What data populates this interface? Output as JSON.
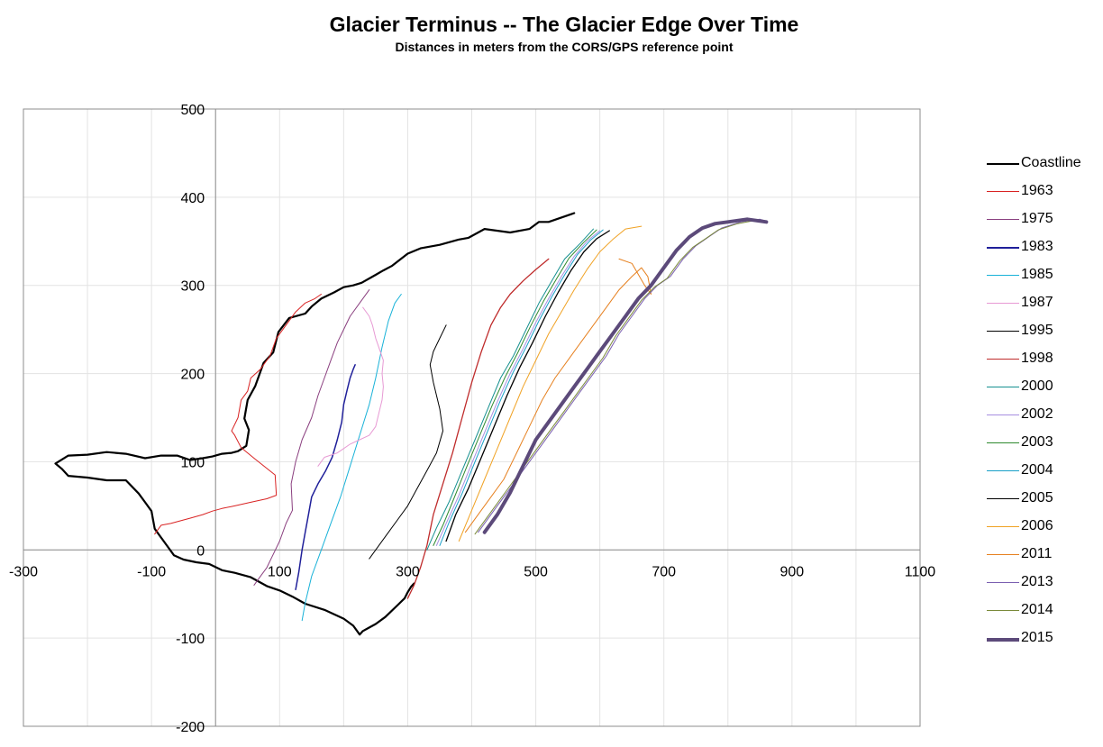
{
  "chart_data": {
    "type": "line",
    "title": "Glacier Terminus -- The Glacier Edge Over Time",
    "subtitle": "Distances in meters from the CORS/GPS reference point",
    "xlabel": "",
    "ylabel": "",
    "xlim": [
      -300,
      1100
    ],
    "ylim": [
      -200,
      500
    ],
    "xticks": [
      -300,
      -100,
      100,
      300,
      500,
      700,
      900,
      1100
    ],
    "yticks": [
      -200,
      -100,
      0,
      100,
      200,
      300,
      400,
      500
    ],
    "xtick_labels": [
      "-300",
      "-100",
      "100",
      "300",
      "500",
      "700",
      "900",
      "1100"
    ],
    "ytick_labels": [
      "-200",
      "-100",
      "0",
      "100",
      "200",
      "300",
      "400",
      "500"
    ],
    "grid": true,
    "legend_position": "right",
    "series": [
      {
        "name": "Coastline",
        "color": "#000000",
        "width": 2.2,
        "x": [
          560,
          520,
          505,
          490,
          460,
          420,
          395,
          380,
          350,
          320,
          300,
          275,
          262,
          250,
          228,
          215,
          200,
          185,
          165,
          150,
          140,
          115,
          98,
          90,
          75,
          62,
          50,
          45,
          52,
          48,
          35,
          25,
          10,
          -5,
          -20,
          -40,
          -60,
          -85,
          -110,
          -140,
          -170,
          -200,
          -230,
          -250,
          -240,
          -230,
          -200,
          -170,
          -140,
          -120,
          -110,
          -100,
          -95,
          -85,
          -75,
          -65,
          -50,
          -30,
          -10,
          10,
          30,
          55,
          80,
          100,
          120,
          140,
          170,
          200,
          215,
          225,
          230,
          240,
          250,
          265,
          285,
          295,
          300,
          305,
          310
        ],
        "y": [
          382,
          372,
          372,
          364,
          360,
          364,
          354,
          352,
          346,
          342,
          336,
          322,
          317,
          312,
          303,
          300,
          298,
          292,
          285,
          276,
          268,
          263,
          247,
          224,
          212,
          186,
          170,
          149,
          136,
          118,
          112,
          110,
          109,
          106,
          104,
          102,
          107,
          107,
          104,
          109,
          111,
          108,
          107,
          98,
          92,
          84,
          82,
          79,
          79,
          64,
          54,
          44,
          24,
          14,
          4,
          -6,
          -11,
          -14,
          -16,
          -23,
          -26,
          -31,
          -41,
          -46,
          -53,
          -61,
          -68,
          -78,
          -86,
          -96,
          -92,
          -88,
          -84,
          -76,
          -62,
          -55,
          -48,
          -42,
          -38
        ]
      },
      {
        "name": "1963",
        "color": "#d92323",
        "width": 1,
        "x": [
          -95,
          -85,
          -70,
          -55,
          -40,
          -20,
          -5,
          10,
          30,
          55,
          80,
          95,
          93,
          60,
          40,
          30,
          25,
          35,
          40,
          50,
          55,
          70,
          85,
          95,
          110,
          125,
          140,
          155,
          165
        ],
        "y": [
          18,
          28,
          30,
          33,
          36,
          40,
          44,
          47,
          50,
          54,
          58,
          62,
          85,
          104,
          116,
          130,
          135,
          150,
          170,
          180,
          195,
          205,
          220,
          240,
          255,
          270,
          280,
          285,
          290
        ]
      },
      {
        "name": "1975",
        "color": "#8a3f7f",
        "width": 1,
        "x": [
          60,
          70,
          80,
          90,
          100,
          110,
          120,
          118,
          125,
          135,
          150,
          160,
          170,
          180,
          190,
          200,
          210,
          225,
          240
        ],
        "y": [
          -40,
          -30,
          -20,
          -5,
          10,
          30,
          45,
          75,
          100,
          125,
          150,
          175,
          195,
          215,
          235,
          250,
          265,
          280,
          295
        ]
      },
      {
        "name": "1983",
        "color": "#20209a",
        "width": 1.5,
        "x": [
          125,
          130,
          135,
          140,
          145,
          150,
          160,
          172,
          182,
          190,
          197,
          200,
          205,
          210,
          215,
          218
        ],
        "y": [
          -45,
          -25,
          0,
          20,
          40,
          60,
          75,
          90,
          105,
          125,
          145,
          165,
          180,
          195,
          205,
          210
        ]
      },
      {
        "name": "1985",
        "color": "#19b2d8",
        "width": 1,
        "x": [
          135,
          140,
          150,
          165,
          180,
          195,
          210,
          225,
          240,
          250,
          260,
          270,
          280,
          290
        ],
        "y": [
          -80,
          -60,
          -30,
          0,
          30,
          60,
          95,
          130,
          165,
          195,
          230,
          260,
          280,
          290
        ]
      },
      {
        "name": "1987",
        "color": "#e79ad4",
        "width": 1,
        "x": [
          160,
          170,
          190,
          200,
          210,
          225,
          240,
          250,
          255,
          260,
          262,
          260,
          262,
          250,
          245,
          240,
          230
        ],
        "y": [
          95,
          105,
          110,
          115,
          120,
          125,
          130,
          140,
          155,
          170,
          185,
          200,
          215,
          240,
          255,
          265,
          275
        ]
      },
      {
        "name": "1995",
        "color": "#000000",
        "width": 1,
        "x": [
          240,
          255,
          270,
          285,
          300,
          315,
          330,
          345,
          355,
          350,
          340,
          335,
          340,
          350,
          360
        ],
        "y": [
          -10,
          5,
          20,
          35,
          50,
          70,
          90,
          110,
          135,
          160,
          190,
          210,
          225,
          240,
          255
        ]
      },
      {
        "name": "1998",
        "color": "#bf2b2b",
        "width": 1.3,
        "x": [
          300,
          310,
          320,
          330,
          340,
          355,
          370,
          385,
          400,
          415,
          430,
          445,
          460,
          480,
          500,
          520
        ],
        "y": [
          -55,
          -40,
          -20,
          5,
          40,
          75,
          110,
          150,
          190,
          225,
          255,
          275,
          290,
          305,
          318,
          330
        ]
      },
      {
        "name": "2000",
        "color": "#159090",
        "width": 1,
        "x": [
          330,
          345,
          365,
          385,
          405,
          425,
          445,
          465,
          485,
          505,
          525,
          545,
          570,
          590
        ],
        "y": [
          0,
          25,
          55,
          90,
          125,
          160,
          195,
          220,
          250,
          280,
          305,
          330,
          348,
          364
        ]
      },
      {
        "name": "2002",
        "color": "#a78ee0",
        "width": 1,
        "x": [
          345,
          360,
          380,
          400,
          420,
          440,
          460,
          480,
          500,
          520,
          540,
          560,
          580,
          600
        ],
        "y": [
          5,
          30,
          62,
          98,
          133,
          168,
          200,
          228,
          258,
          285,
          310,
          333,
          350,
          362
        ]
      },
      {
        "name": "2003",
        "color": "#2f8a2f",
        "width": 1,
        "x": [
          340,
          355,
          372,
          392,
          412,
          432,
          452,
          472,
          492,
          512,
          532,
          552,
          575,
          595
        ],
        "y": [
          5,
          28,
          58,
          94,
          129,
          164,
          196,
          224,
          254,
          282,
          307,
          331,
          349,
          363
        ]
      },
      {
        "name": "2004",
        "color": "#19a0c8",
        "width": 1,
        "x": [
          350,
          365,
          385,
          405,
          425,
          445,
          465,
          485,
          505,
          525,
          545,
          565,
          585,
          605
        ],
        "y": [
          5,
          32,
          64,
          100,
          135,
          170,
          202,
          230,
          260,
          287,
          312,
          335,
          351,
          363
        ]
      },
      {
        "name": "2005",
        "color": "#000000",
        "width": 1.3,
        "x": [
          360,
          375,
          395,
          415,
          435,
          455,
          475,
          495,
          515,
          535,
          555,
          575,
          595,
          615
        ],
        "y": [
          10,
          40,
          70,
          105,
          140,
          175,
          207,
          235,
          265,
          292,
          317,
          338,
          353,
          362
        ]
      },
      {
        "name": "2006",
        "color": "#f0a224",
        "width": 1,
        "x": [
          380,
          400,
          420,
          440,
          460,
          480,
          500,
          520,
          540,
          560,
          580,
          600,
          620,
          640,
          665
        ],
        "y": [
          10,
          45,
          80,
          115,
          150,
          185,
          215,
          245,
          270,
          295,
          318,
          338,
          352,
          364,
          367
        ]
      },
      {
        "name": "2011",
        "color": "#e6801f",
        "width": 1,
        "x": [
          390,
          410,
          430,
          450,
          470,
          490,
          510,
          530,
          550,
          570,
          590,
          610,
          630,
          650,
          665,
          675,
          680,
          670,
          650,
          630
        ],
        "y": [
          20,
          40,
          60,
          80,
          110,
          140,
          170,
          195,
          215,
          235,
          255,
          275,
          295,
          310,
          320,
          310,
          290,
          300,
          325,
          330
        ]
      },
      {
        "name": "2013",
        "color": "#7a5fb0",
        "width": 1,
        "x": [
          410,
          430,
          450,
          470,
          490,
          510,
          530,
          550,
          570,
          590,
          610,
          630,
          650,
          670,
          690,
          710,
          730,
          750,
          770,
          790,
          820,
          850,
          860
        ],
        "y": [
          20,
          40,
          60,
          80,
          100,
          120,
          140,
          160,
          180,
          200,
          220,
          245,
          265,
          285,
          300,
          310,
          330,
          345,
          355,
          365,
          372,
          375,
          373
        ]
      },
      {
        "name": "2014",
        "color": "#7a8a3a",
        "width": 1,
        "x": [
          405,
          425,
          445,
          465,
          485,
          505,
          525,
          545,
          565,
          585,
          605,
          625,
          645,
          665,
          685,
          705,
          725,
          745,
          765,
          785,
          815,
          845,
          858
        ],
        "y": [
          18,
          38,
          58,
          78,
          98,
          118,
          138,
          158,
          178,
          198,
          218,
          243,
          263,
          283,
          298,
          308,
          328,
          343,
          353,
          363,
          370,
          374,
          372
        ]
      },
      {
        "name": "2015",
        "color": "#5c4a7a",
        "width": 4,
        "x": [
          420,
          440,
          460,
          480,
          500,
          520,
          540,
          560,
          580,
          600,
          620,
          640,
          660,
          680,
          700,
          720,
          740,
          760,
          780,
          800,
          830,
          860
        ],
        "y": [
          20,
          40,
          65,
          95,
          125,
          145,
          165,
          185,
          205,
          225,
          245,
          265,
          285,
          300,
          320,
          340,
          355,
          365,
          370,
          372,
          375,
          372
        ]
      }
    ]
  }
}
